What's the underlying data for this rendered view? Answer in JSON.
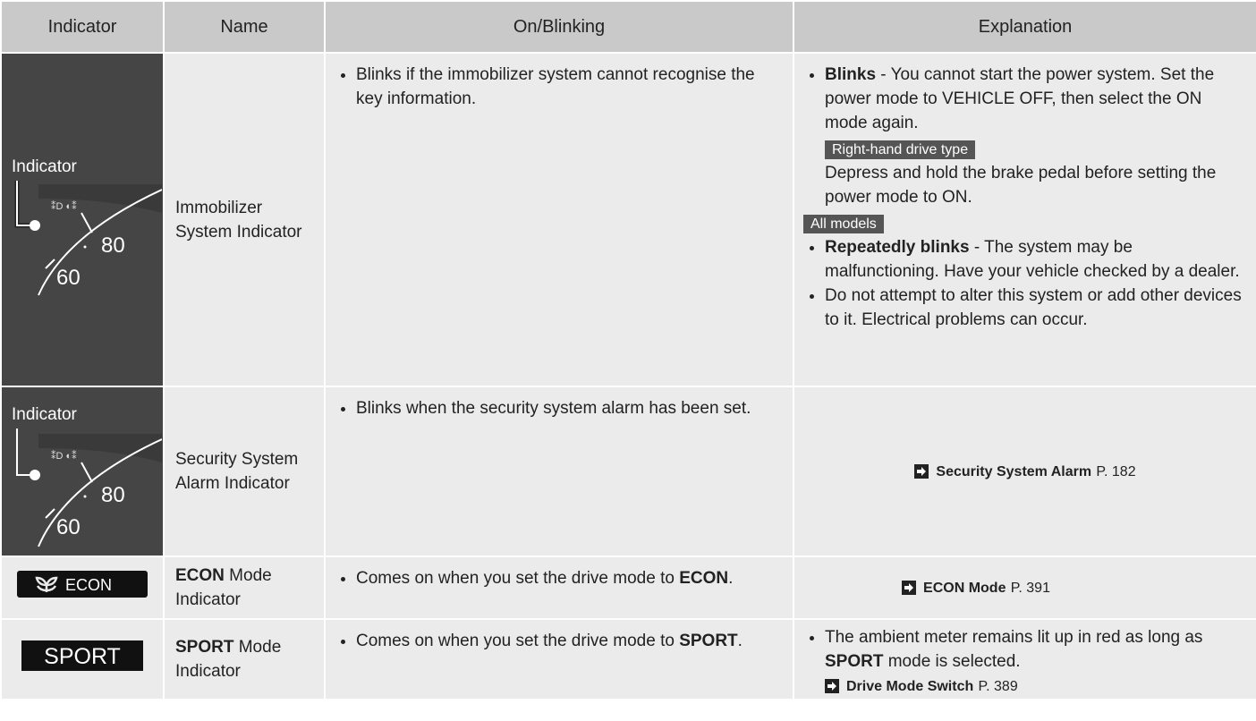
{
  "table": {
    "headers": [
      "Indicator",
      "Name",
      "On/Blinking",
      "Explanation"
    ],
    "rows": [
      {
        "icon": {
          "label": "Indicator",
          "speed_high": "80",
          "speed_low": "60"
        },
        "name": "Immobilizer System Indicator",
        "on_blinking": "Blinks if the immobilizer system cannot recognise the key information.",
        "explanation": {
          "items": [
            {
              "bold": "Blinks",
              "text": " - You cannot start the power system. Set the power mode to VEHICLE OFF, then select the ON mode again."
            },
            {
              "tag": "Right-hand drive type",
              "text": "Depress and hold the brake pedal before setting the power mode to ON."
            }
          ],
          "tag": "All models",
          "bullets": [
            {
              "bold": "Repeatedly blinks",
              "text": " - The system may be malfunctioning. Have your vehicle checked by a dealer."
            },
            {
              "text": "Do not attempt to alter this system or add other devices to it. Electrical problems can occur."
            }
          ]
        }
      },
      {
        "icon": {
          "label": "Indicator",
          "speed_high": "80",
          "speed_low": "60"
        },
        "name": "Security System Alarm Indicator",
        "on_blinking": "Blinks when the security system alarm has been set.",
        "explanation": {
          "ref": "Security System Alarm",
          "page": "P. 182"
        }
      },
      {
        "icon": {
          "label": "ECON"
        },
        "name": {
          "bold": "ECON",
          "text": " Mode Indicator"
        },
        "on_blinking": {
          "text": "Comes on when you set the drive mode to ",
          "bold": "ECON",
          "end": "."
        },
        "explanation": {
          "ref": "ECON Mode",
          "page": "P. 391"
        }
      },
      {
        "icon": {
          "label": "SPORT"
        },
        "name": {
          "bold": "SPORT",
          "text": " Mode Indicator"
        },
        "on_blinking": {
          "text": "Comes on when you set the drive mode to ",
          "bold": "SPORT",
          "end": "."
        },
        "explanation": {
          "text": "The ambient meter remains lit up in red as long as ",
          "bold": "SPORT",
          "end": " mode is selected.",
          "ref": "Drive Mode Switch",
          "page": "P. 389"
        }
      }
    ]
  }
}
